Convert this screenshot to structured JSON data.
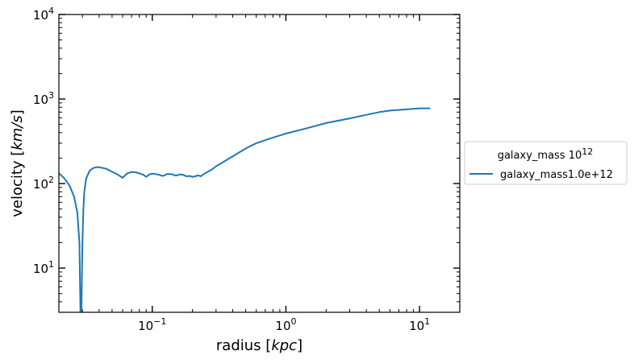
{
  "chart_data": {
    "type": "line",
    "xscale": "log",
    "yscale": "log",
    "xlim": [
      0.02,
      20
    ],
    "ylim": [
      3,
      10000
    ],
    "xlabel_text": "radius ",
    "xlabel_unit": "kpc",
    "ylabel_text": "velocity ",
    "ylabel_unit": "km/s",
    "x_ticks": [
      {
        "base": "10",
        "exp": "−1",
        "value": 0.1
      },
      {
        "base": "10",
        "exp": "0",
        "value": 1
      },
      {
        "base": "10",
        "exp": "1",
        "value": 10
      }
    ],
    "y_ticks": [
      {
        "base": "10",
        "exp": "1",
        "value": 10
      },
      {
        "base": "10",
        "exp": "2",
        "value": 100
      },
      {
        "base": "10",
        "exp": "3",
        "value": 1000
      },
      {
        "base": "10",
        "exp": "4",
        "value": 10000
      }
    ],
    "legend": {
      "title_text": "galaxy_mass 10",
      "title_exp": "12",
      "position": "outside right"
    },
    "series": [
      {
        "name": "galaxy_mass1.0e+12",
        "color": "#1f77b4",
        "x": [
          0.02,
          0.022,
          0.024,
          0.026,
          0.0275,
          0.0285,
          0.029,
          0.0295,
          0.03,
          0.0305,
          0.031,
          0.032,
          0.034,
          0.036,
          0.038,
          0.04,
          0.045,
          0.05,
          0.055,
          0.06,
          0.065,
          0.07,
          0.075,
          0.08,
          0.085,
          0.09,
          0.095,
          0.1,
          0.105,
          0.11,
          0.12,
          0.13,
          0.14,
          0.15,
          0.16,
          0.17,
          0.18,
          0.19,
          0.2,
          0.21,
          0.22,
          0.23,
          0.25,
          0.28,
          0.3,
          0.35,
          0.4,
          0.5,
          0.6,
          0.8,
          1.0,
          1.5,
          2.0,
          3.0,
          4.0,
          5.0,
          6.0,
          8.0,
          10.0,
          12.0
        ],
        "y": [
          133,
          115,
          95,
          70,
          45,
          20,
          3,
          3,
          20,
          50,
          80,
          115,
          142,
          152,
          156,
          156,
          150,
          138,
          128,
          117,
          132,
          137,
          136,
          132,
          128,
          120,
          128,
          131,
          130,
          128,
          123,
          130,
          129,
          124,
          128,
          127,
          122,
          123,
          120,
          122,
          125,
          122,
          133,
          147,
          160,
          185,
          210,
          260,
          300,
          350,
          390,
          460,
          520,
          590,
          650,
          700,
          730,
          755,
          775,
          775
        ]
      }
    ]
  }
}
